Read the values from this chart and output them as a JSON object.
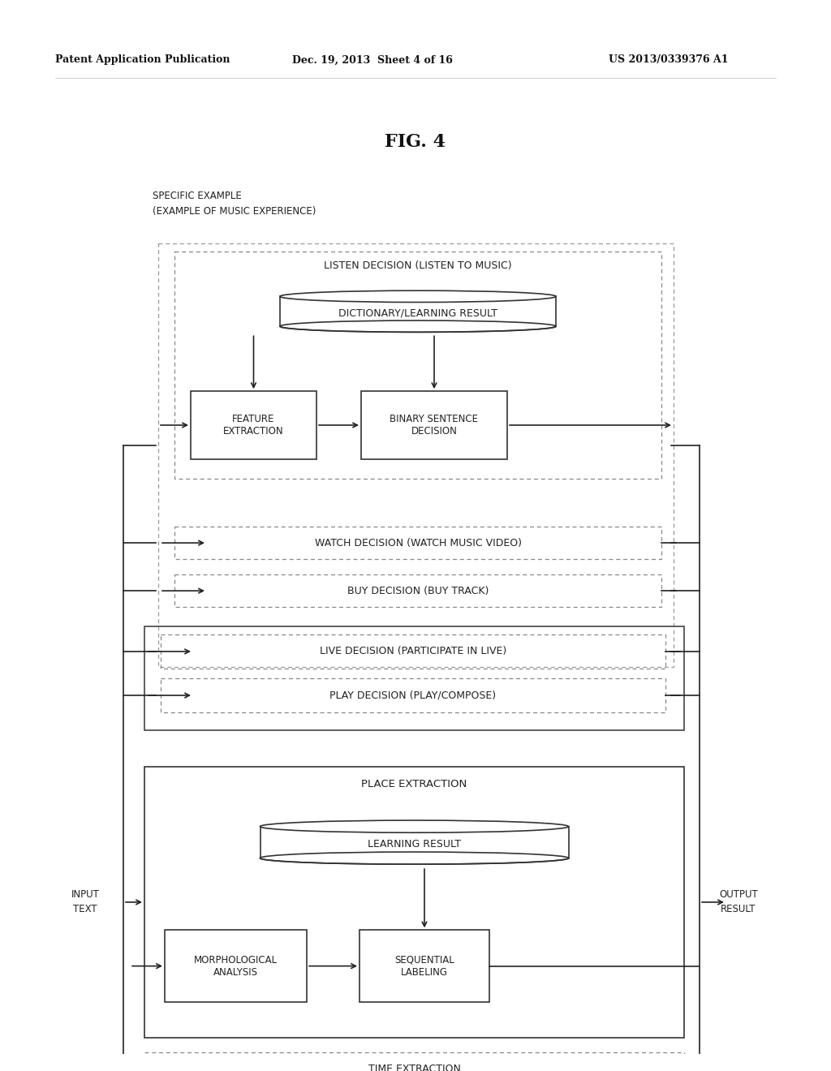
{
  "title": "FIG. 4",
  "header_left": "Patent Application Publication",
  "header_mid": "Dec. 19, 2013  Sheet 4 of 16",
  "header_right": "US 2013/0339376 A1",
  "label_specific": "SPECIFIC EXAMPLE",
  "label_music": "(EXAMPLE OF MUSIC EXPERIENCE)",
  "label_input": "INPUT\nTEXT",
  "label_output": "OUTPUT\nRESULT",
  "listen_decision": "LISTEN DECISION (LISTEN TO MUSIC)",
  "dictionary": "DICTIONARY/LEARNING RESULT",
  "feature_extraction": "FEATURE\nEXTRACTION",
  "binary_sentence": "BINARY SENTENCE\nDECISION",
  "watch_decision": "WATCH DECISION (WATCH MUSIC VIDEO)",
  "buy_decision": "BUY DECISION (BUY TRACK)",
  "live_decision": "LIVE DECISION (PARTICIPATE IN LIVE)",
  "play_decision": "PLAY DECISION (PLAY/COMPOSE)",
  "place_extraction": "PLACE EXTRACTION",
  "learning_result": "LEARNING RESULT",
  "morphological": "MORPHOLOGICAL\nANALYSIS",
  "sequential": "SEQUENTIAL\nLABELING",
  "time_extraction": "TIME EXTRACTION",
  "bg_color": "#ffffff",
  "text_color": "#222222",
  "box_color": "#333333",
  "dash_color": "#777777"
}
